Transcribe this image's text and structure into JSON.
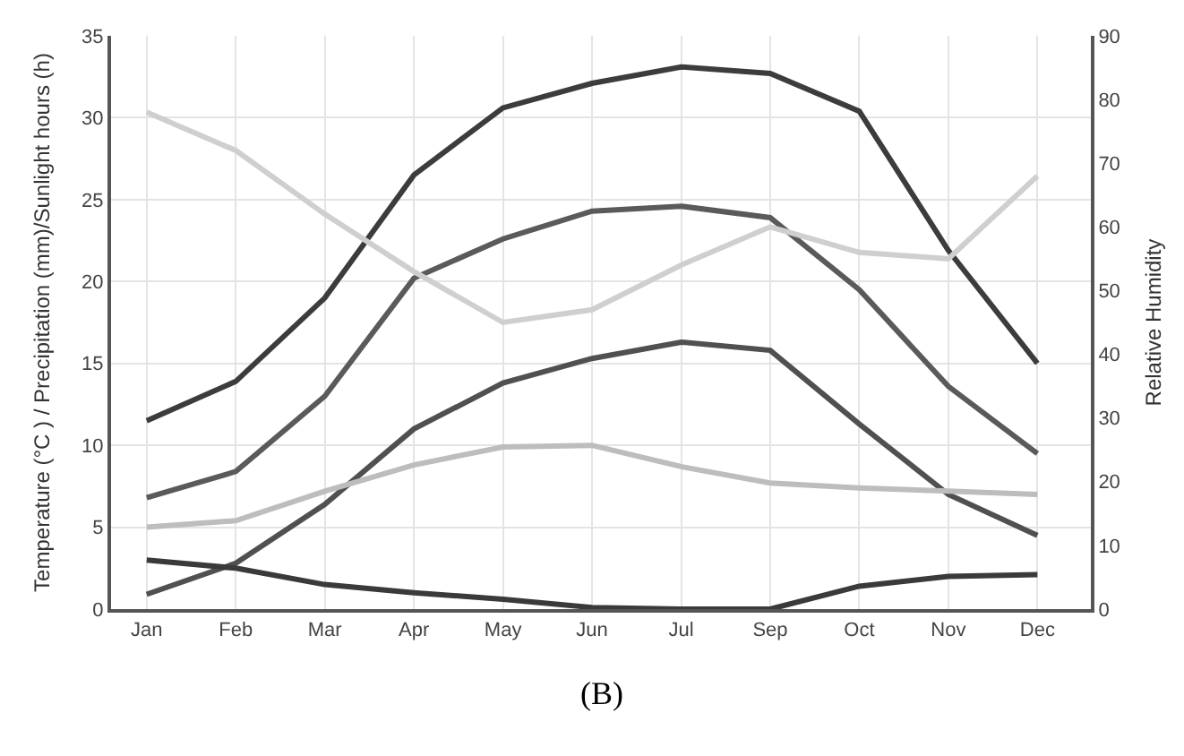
{
  "chart_data": {
    "type": "line",
    "ylabel": "Temperature (°C ) / Precipitation (mm)/Sunlight hours (h)",
    "y2label": "Relative Humidity",
    "annotations": [
      "(B)"
    ],
    "categories": [
      "Jan",
      "Feb",
      "Mar",
      "Apr",
      "May",
      "Jun",
      "Jul",
      "Sep",
      "Oct",
      "Nov",
      "Dec"
    ],
    "ylim": [
      0,
      35
    ],
    "yticks": [
      0,
      5,
      10,
      15,
      20,
      25,
      30,
      35
    ],
    "y2lim": [
      0,
      90
    ],
    "y2ticks": [
      0,
      10,
      20,
      30,
      40,
      50,
      60,
      70,
      80,
      90
    ],
    "grid": true,
    "line_style": "solid",
    "series": [
      {
        "color": "#3c3c3c",
        "values": [
          11.5,
          13.9,
          19.0,
          26.5,
          30.6,
          32.1,
          33.1,
          32.7,
          30.4,
          21.9,
          15.0
        ]
      },
      {
        "color": "#5a5a5a",
        "values": [
          6.8,
          8.4,
          13.0,
          20.2,
          22.6,
          24.3,
          24.6,
          23.9,
          19.5,
          13.6,
          9.5
        ]
      },
      {
        "color": "#505050",
        "values": [
          0.9,
          2.8,
          6.4,
          11.0,
          13.8,
          15.3,
          16.3,
          15.8,
          11.3,
          7.0,
          4.5
        ]
      },
      {
        "color": "#cfcfcf",
        "axis": "y2",
        "values": [
          78,
          72,
          62,
          53,
          45,
          47,
          54,
          60,
          56,
          55,
          68
        ]
      },
      {
        "color": "#bdbdbd",
        "values": [
          5.0,
          5.4,
          7.2,
          8.8,
          9.9,
          10.0,
          8.7,
          7.7,
          7.4,
          7.2,
          7.0
        ]
      },
      {
        "color": "#3a3a3a",
        "values": [
          3.0,
          2.5,
          1.5,
          1.0,
          0.6,
          0.1,
          0,
          0,
          1.4,
          2.0,
          2.1
        ]
      }
    ]
  }
}
